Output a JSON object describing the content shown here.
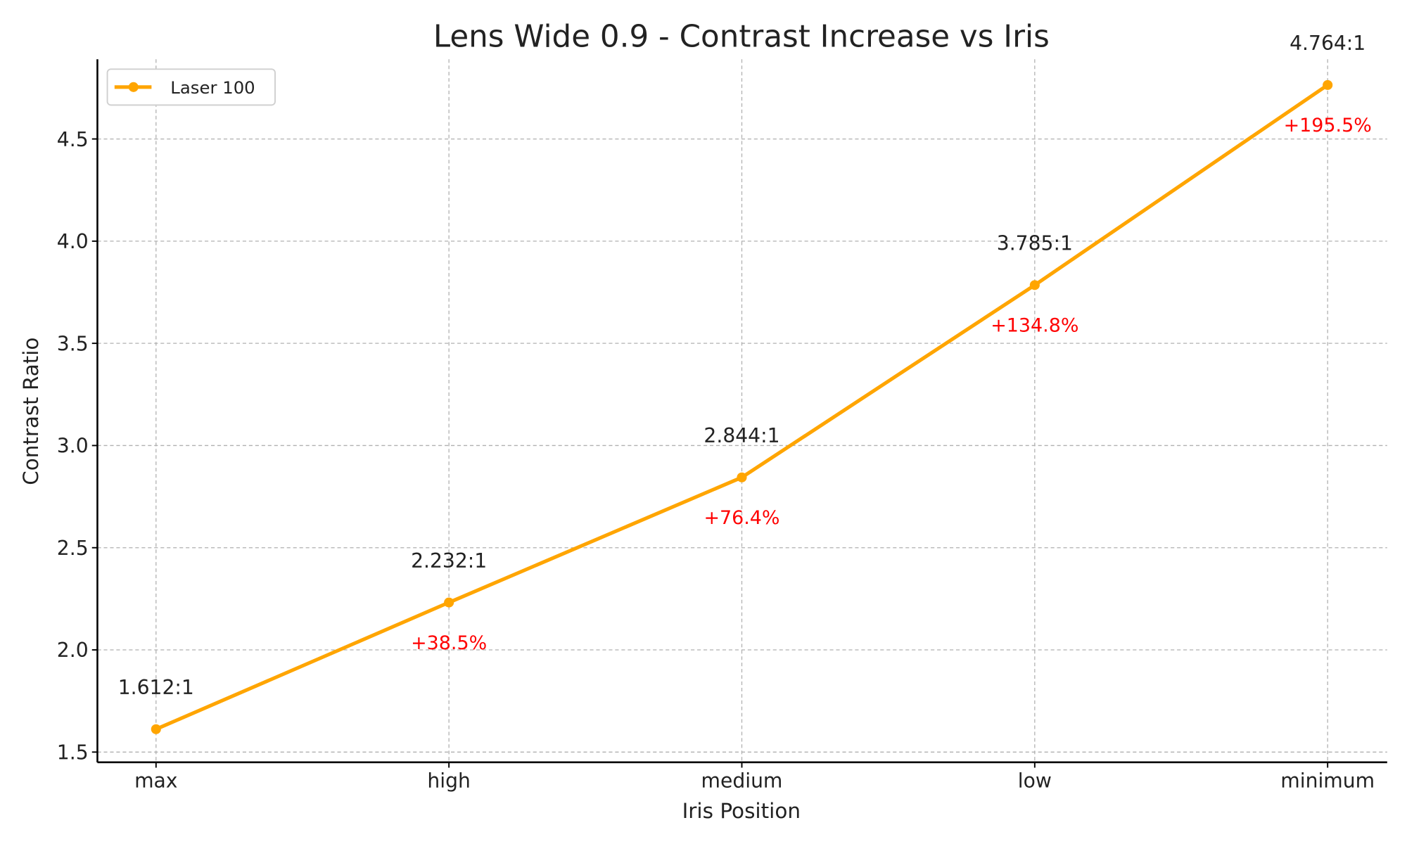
{
  "chart_data": {
    "type": "line",
    "title": "Lens Wide 0.9 - Contrast Increase vs Iris",
    "xlabel": "Iris Position",
    "ylabel": "Contrast Ratio",
    "categories": [
      "max",
      "high",
      "medium",
      "low",
      "minimum"
    ],
    "series": [
      {
        "name": "Laser 100",
        "values": [
          1.612,
          2.232,
          2.844,
          3.785,
          4.764
        ],
        "color": "#FFA500",
        "marker": "circle"
      }
    ],
    "value_labels": [
      "1.612:1",
      "2.232:1",
      "2.844:1",
      "3.785:1",
      "4.764:1"
    ],
    "percent_labels": [
      "",
      "+38.5%",
      "+76.4%",
      "+134.8%",
      "+195.5%"
    ],
    "percent_label_color": "#FF0000",
    "yticks": [
      "1.5",
      "2.0",
      "2.5",
      "3.0",
      "3.5",
      "4.0",
      "4.5"
    ],
    "ylim": [
      1.45,
      4.89
    ],
    "grid": true,
    "legend": "top-left"
  }
}
